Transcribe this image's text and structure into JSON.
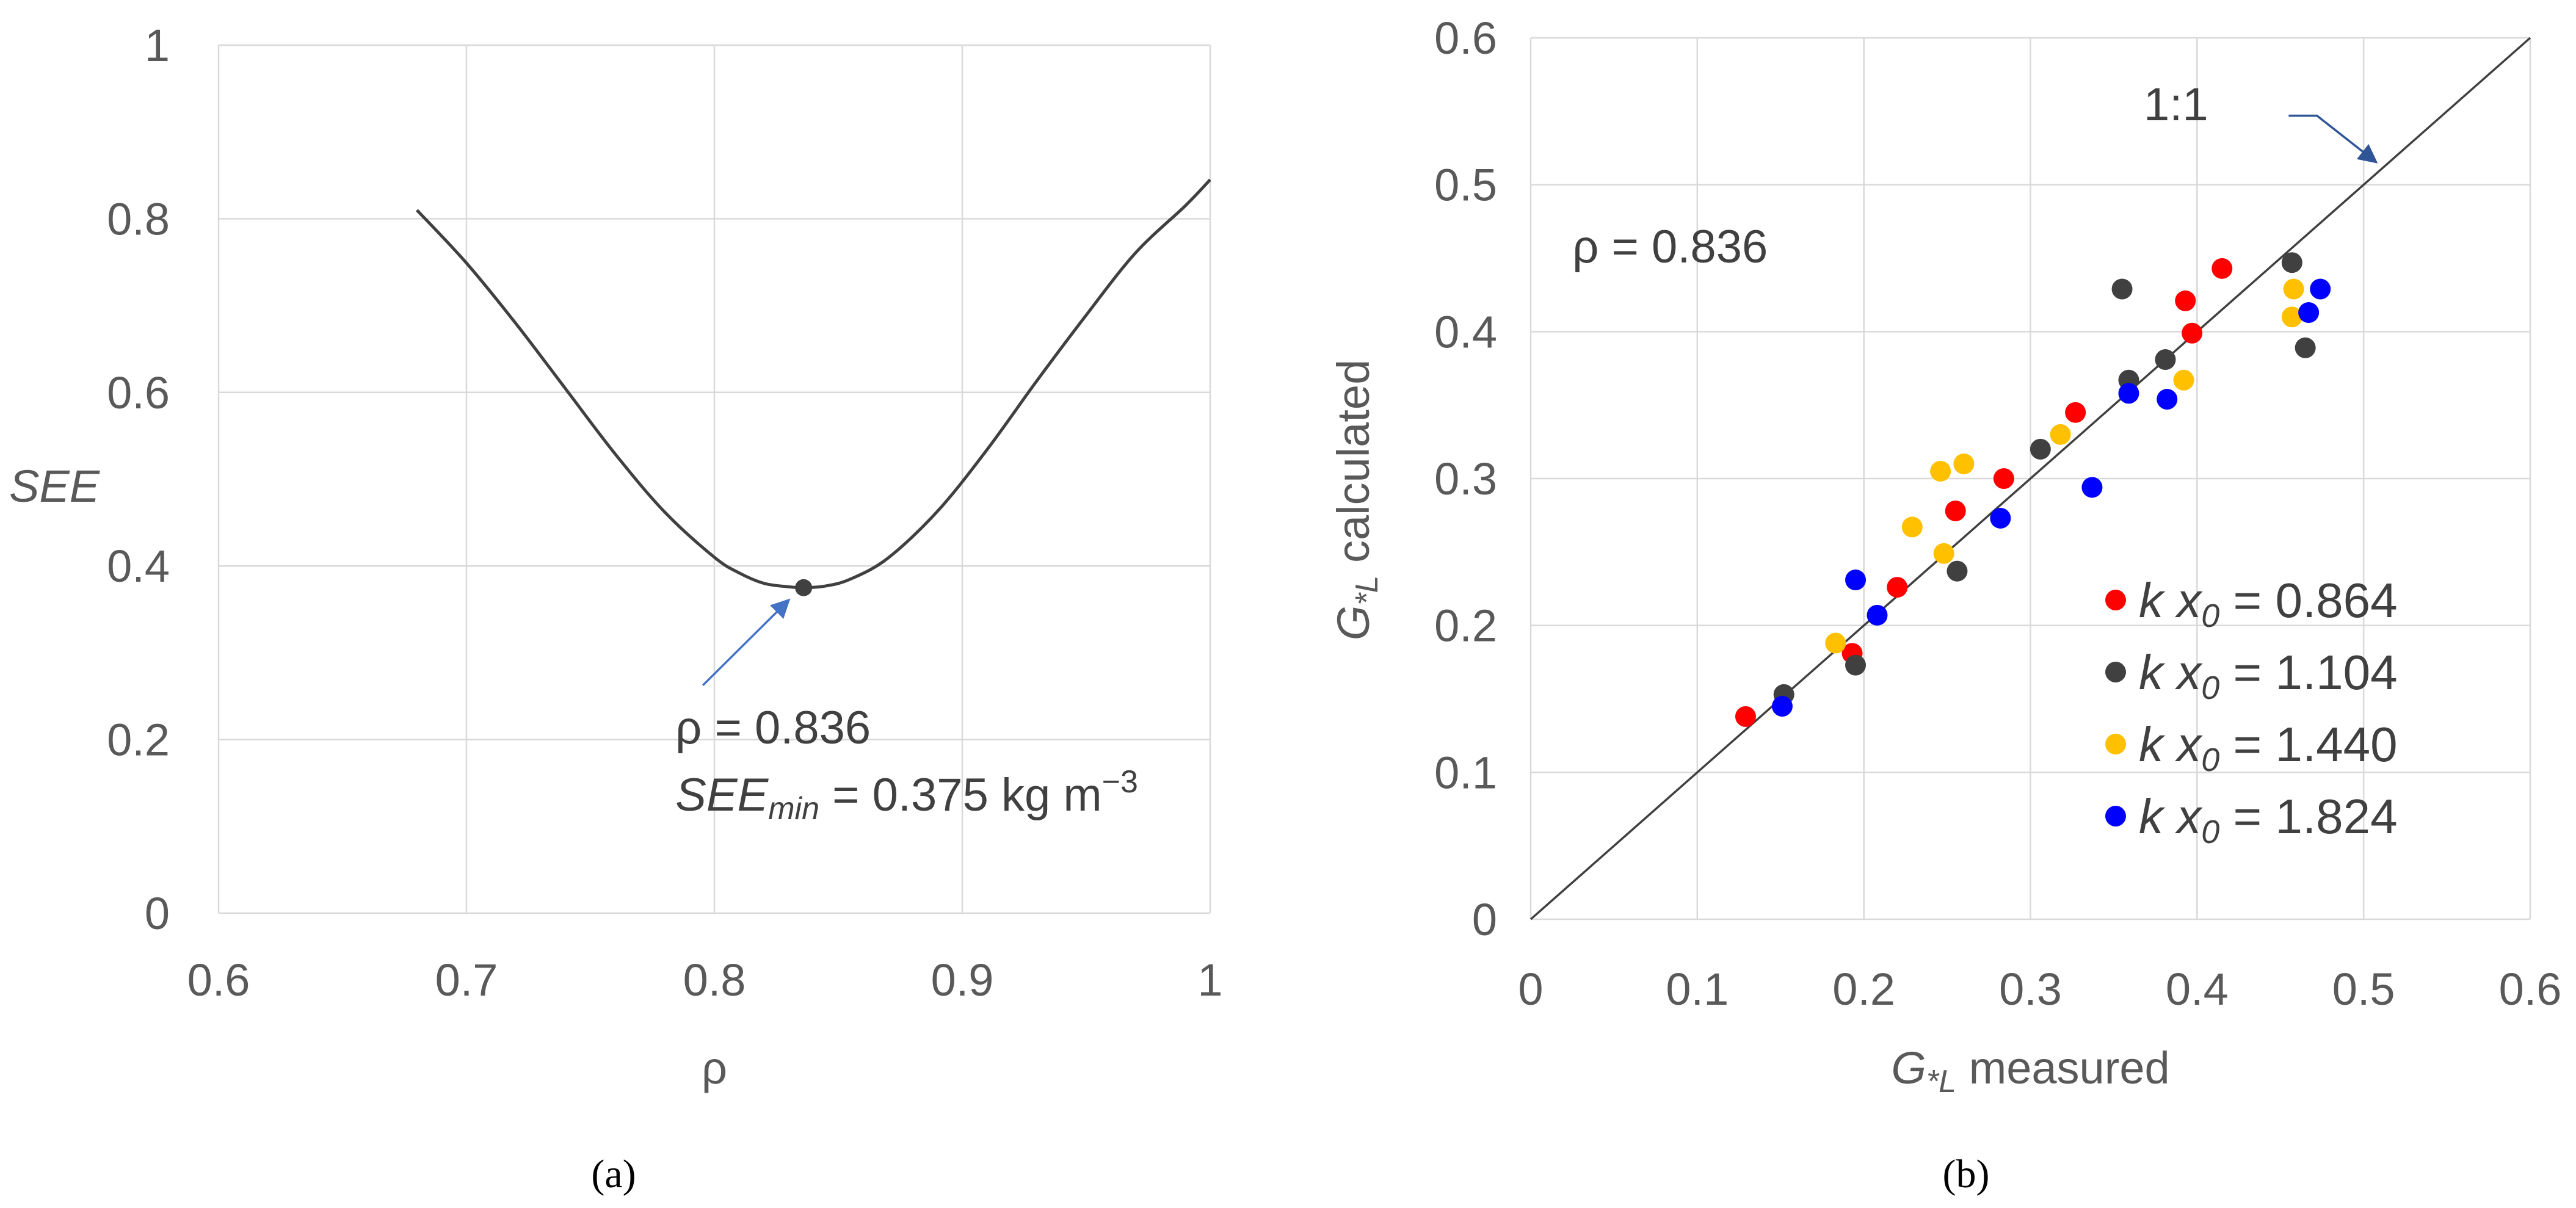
{
  "chart_data": [
    {
      "panel_label": "(a)",
      "type": "line",
      "xlabel": "ρ",
      "ylabel": "SEE",
      "xlim": [
        0.6,
        1.0
      ],
      "ylim": [
        0,
        1.0
      ],
      "x_ticks": [
        0.6,
        0.7,
        0.8,
        0.9,
        1.0
      ],
      "x_tick_labels": [
        "0.6",
        "0.7",
        "0.8",
        "0.9",
        "1"
      ],
      "y_ticks": [
        0,
        0.2,
        0.4,
        0.6,
        0.8,
        1.0
      ],
      "y_tick_labels": [
        "0",
        "0.2",
        "0.4",
        "0.6",
        "0.8",
        "1"
      ],
      "grid": true,
      "series": [
        {
          "name": "SEE curve",
          "x": [
            0.68,
            0.7,
            0.72,
            0.74,
            0.76,
            0.78,
            0.8,
            0.81,
            0.82,
            0.83,
            0.836,
            0.845,
            0.855,
            0.87,
            0.89,
            0.91,
            0.93,
            0.95,
            0.97,
            0.99,
            1.0
          ],
          "y": [
            0.81,
            0.749,
            0.679,
            0.604,
            0.529,
            0.462,
            0.41,
            0.392,
            0.38,
            0.376,
            0.375,
            0.377,
            0.385,
            0.409,
            0.463,
            0.534,
            0.613,
            0.689,
            0.761,
            0.815,
            0.845
          ]
        }
      ],
      "minimum_point": {
        "x": 0.836,
        "y": 0.375
      },
      "annotation": {
        "rho_text": "ρ = 0.836",
        "see_prefix": "SEE",
        "see_subscript": "min",
        "see_value": " = 0.375 kg m",
        "see_exponent": "−3"
      }
    },
    {
      "panel_label": "(b)",
      "type": "scatter",
      "xlabel_symbol": "G",
      "xlabel_subscript": "*L",
      "xlabel_rest": " measured",
      "ylabel_symbol": "G",
      "ylabel_subscript": "*L",
      "ylabel_rest": " calculated",
      "xlim": [
        0,
        0.6
      ],
      "ylim": [
        0,
        0.6
      ],
      "x_ticks": [
        0,
        0.1,
        0.2,
        0.3,
        0.4,
        0.5,
        0.6
      ],
      "x_tick_labels": [
        "0",
        "0.1",
        "0.2",
        "0.3",
        "0.4",
        "0.5",
        "0.6"
      ],
      "y_ticks": [
        0,
        0.1,
        0.2,
        0.3,
        0.4,
        0.5,
        0.6
      ],
      "y_tick_labels": [
        "0",
        "0.1",
        "0.2",
        "0.3",
        "0.4",
        "0.5",
        "0.6"
      ],
      "grid": true,
      "rho_text": "ρ = 0.836",
      "one_to_one_label": "1:1",
      "legend_position": "bottom-right",
      "series": [
        {
          "name": "k x0 = 0.864",
          "label_k": "k x",
          "label_sub": "0",
          "label_value": " = 0.864",
          "color": "#ff0000",
          "points": [
            [
              0.129,
              0.138
            ],
            [
              0.193,
              0.181
            ],
            [
              0.22,
              0.226
            ],
            [
              0.255,
              0.278
            ],
            [
              0.284,
              0.3
            ],
            [
              0.327,
              0.345
            ],
            [
              0.393,
              0.421
            ],
            [
              0.397,
              0.399
            ],
            [
              0.415,
              0.443
            ]
          ]
        },
        {
          "name": "k x0 = 1.104",
          "label_k": "k x",
          "label_sub": "0",
          "label_value": " = 1.104",
          "color": "#404040",
          "points": [
            [
              0.152,
              0.153
            ],
            [
              0.195,
              0.173
            ],
            [
              0.256,
              0.237
            ],
            [
              0.306,
              0.32
            ],
            [
              0.355,
              0.429
            ],
            [
              0.359,
              0.367
            ],
            [
              0.381,
              0.381
            ],
            [
              0.457,
              0.447
            ],
            [
              0.465,
              0.389
            ]
          ]
        },
        {
          "name": "k x0 = 1.440",
          "label_k": "k x",
          "label_sub": "0",
          "label_value": " = 1.440",
          "color": "#ffc000",
          "points": [
            [
              0.183,
              0.188
            ],
            [
              0.229,
              0.267
            ],
            [
              0.246,
              0.305
            ],
            [
              0.248,
              0.249
            ],
            [
              0.26,
              0.31
            ],
            [
              0.318,
              0.33
            ],
            [
              0.392,
              0.367
            ],
            [
              0.457,
              0.41
            ],
            [
              0.458,
              0.429
            ]
          ]
        },
        {
          "name": "k x0 = 1.824",
          "label_k": "k x",
          "label_sub": "0",
          "label_value": " = 1.824",
          "color": "#0000ff",
          "points": [
            [
              0.151,
              0.145
            ],
            [
              0.195,
              0.231
            ],
            [
              0.208,
              0.207
            ],
            [
              0.282,
              0.273
            ],
            [
              0.337,
              0.294
            ],
            [
              0.359,
              0.358
            ],
            [
              0.382,
              0.354
            ],
            [
              0.467,
              0.413
            ],
            [
              0.474,
              0.429
            ]
          ]
        }
      ]
    }
  ]
}
